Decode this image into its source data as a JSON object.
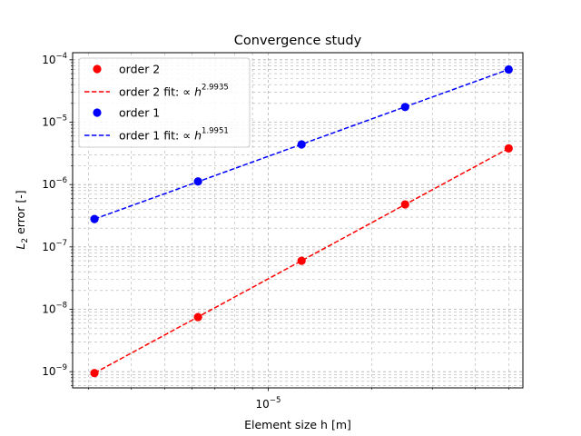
{
  "chart_data": {
    "type": "line",
    "title": "Convergence study",
    "xlabel": "Element size h [m]",
    "ylabel": {
      "base": "L",
      "sub": "2",
      "rest": " error [-]"
    },
    "xscale": "log",
    "yscale": "log",
    "xlim": [
      2.7e-06,
      5.5e-05
    ],
    "ylim": [
      5.5e-10,
      0.00013
    ],
    "grid": true,
    "legend_position": "top-left",
    "x_tick_labels": [
      {
        "value": 1e-05,
        "base": "10",
        "exp": "−5"
      }
    ],
    "y_tick_labels": [
      {
        "value": 1e-09,
        "base": "10",
        "exp": "−9"
      },
      {
        "value": 1e-08,
        "base": "10",
        "exp": "−8"
      },
      {
        "value": 1e-07,
        "base": "10",
        "exp": "−7"
      },
      {
        "value": 1e-06,
        "base": "10",
        "exp": "−6"
      },
      {
        "value": 1e-05,
        "base": "10",
        "exp": "−5"
      },
      {
        "value": 0.0001,
        "base": "10",
        "exp": "−4"
      }
    ],
    "series": [
      {
        "name": "order 2",
        "color": "#ff0000",
        "style": "markers",
        "x": [
          3.125e-06,
          6.25e-06,
          1.25e-05,
          2.5e-05,
          5e-05
        ],
        "y": [
          9.5e-10,
          7.5e-09,
          6e-08,
          4.8e-07,
          3.8e-06
        ]
      },
      {
        "name": "order 2 fit",
        "legend_prefix": "order 2 fit: ∝ ",
        "legend_var": "h",
        "legend_exp": "2.9935",
        "color": "#ff0000",
        "style": "dashed",
        "x": [
          3.125e-06,
          6.25e-06,
          1.25e-05,
          2.5e-05,
          5e-05
        ],
        "y": [
          9.5e-10,
          7.55e-09,
          6e-08,
          4.78e-07,
          3.8e-06
        ]
      },
      {
        "name": "order 1",
        "color": "#0000ff",
        "style": "markers",
        "x": [
          3.125e-06,
          6.25e-06,
          1.25e-05,
          2.5e-05,
          5e-05
        ],
        "y": [
          2.8e-07,
          1.12e-06,
          4.4e-06,
          1.75e-05,
          7e-05
        ]
      },
      {
        "name": "order 1 fit",
        "legend_prefix": "order 1 fit: ∝ ",
        "legend_var": "h",
        "legend_exp": "1.9951",
        "color": "#0000ff",
        "style": "dashed",
        "x": [
          3.125e-06,
          6.25e-06,
          1.25e-05,
          2.5e-05,
          5e-05
        ],
        "y": [
          2.8e-07,
          1.11e-06,
          4.42e-06,
          1.76e-05,
          7e-05
        ]
      }
    ]
  }
}
